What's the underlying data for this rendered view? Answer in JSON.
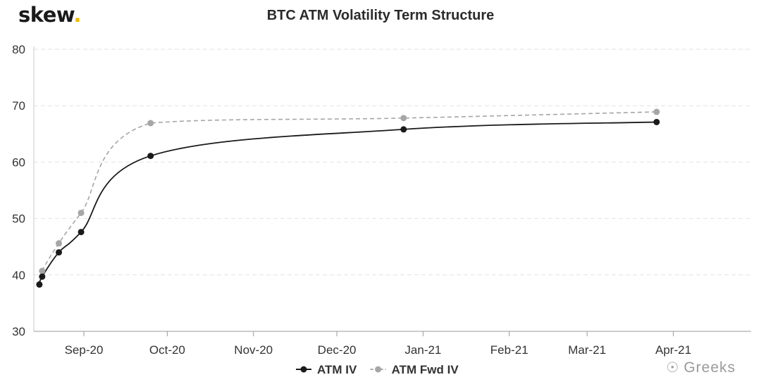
{
  "brand": {
    "name": "skew",
    "dot": ".",
    "accent_color": "#f2b705"
  },
  "watermark": {
    "icon": "wechat-icon",
    "text": "Greeks"
  },
  "chart_data": {
    "type": "line",
    "title": "BTC ATM Volatility Term Structure",
    "xlabel": "",
    "ylabel": "",
    "x_axis_type": "date",
    "xlim": [
      "2020-08-14",
      "2021-04-29"
    ],
    "ylim": [
      30,
      80
    ],
    "y_ticks": [
      30,
      40,
      50,
      60,
      70,
      80
    ],
    "x_ticks": [
      {
        "date": "2020-09-01",
        "label": "Sep-20"
      },
      {
        "date": "2020-10-01",
        "label": "Oct-20"
      },
      {
        "date": "2020-11-01",
        "label": "Nov-20"
      },
      {
        "date": "2020-12-01",
        "label": "Dec-20"
      },
      {
        "date": "2021-01-01",
        "label": "Jan-21"
      },
      {
        "date": "2021-02-01",
        "label": "Feb-21"
      },
      {
        "date": "2021-03-01",
        "label": "Mar-21"
      },
      {
        "date": "2021-04-01",
        "label": "Apr-21"
      }
    ],
    "grid": {
      "horizontal": true,
      "vertical": false
    },
    "legend_position": "bottom-center",
    "series": [
      {
        "name": "ATM IV",
        "color": "#1a1a1a",
        "dash": "solid",
        "points": [
          {
            "x": "2020-08-16",
            "y": 38.3
          },
          {
            "x": "2020-08-17",
            "y": 39.7
          },
          {
            "x": "2020-08-23",
            "y": 44.0
          },
          {
            "x": "2020-08-31",
            "y": 47.6
          },
          {
            "x": "2020-09-25",
            "y": 61.1
          },
          {
            "x": "2020-12-25",
            "y": 65.8
          },
          {
            "x": "2021-03-26",
            "y": 67.1
          }
        ]
      },
      {
        "name": "ATM Fwd IV",
        "color": "#a6a6a6",
        "dash": "dashed",
        "points": [
          {
            "x": "2020-08-16",
            "y": 38.3
          },
          {
            "x": "2020-08-17",
            "y": 40.7
          },
          {
            "x": "2020-08-23",
            "y": 45.6
          },
          {
            "x": "2020-08-31",
            "y": 51.0
          },
          {
            "x": "2020-09-25",
            "y": 66.9
          },
          {
            "x": "2020-12-25",
            "y": 67.8
          },
          {
            "x": "2021-03-26",
            "y": 68.9
          }
        ]
      }
    ]
  }
}
